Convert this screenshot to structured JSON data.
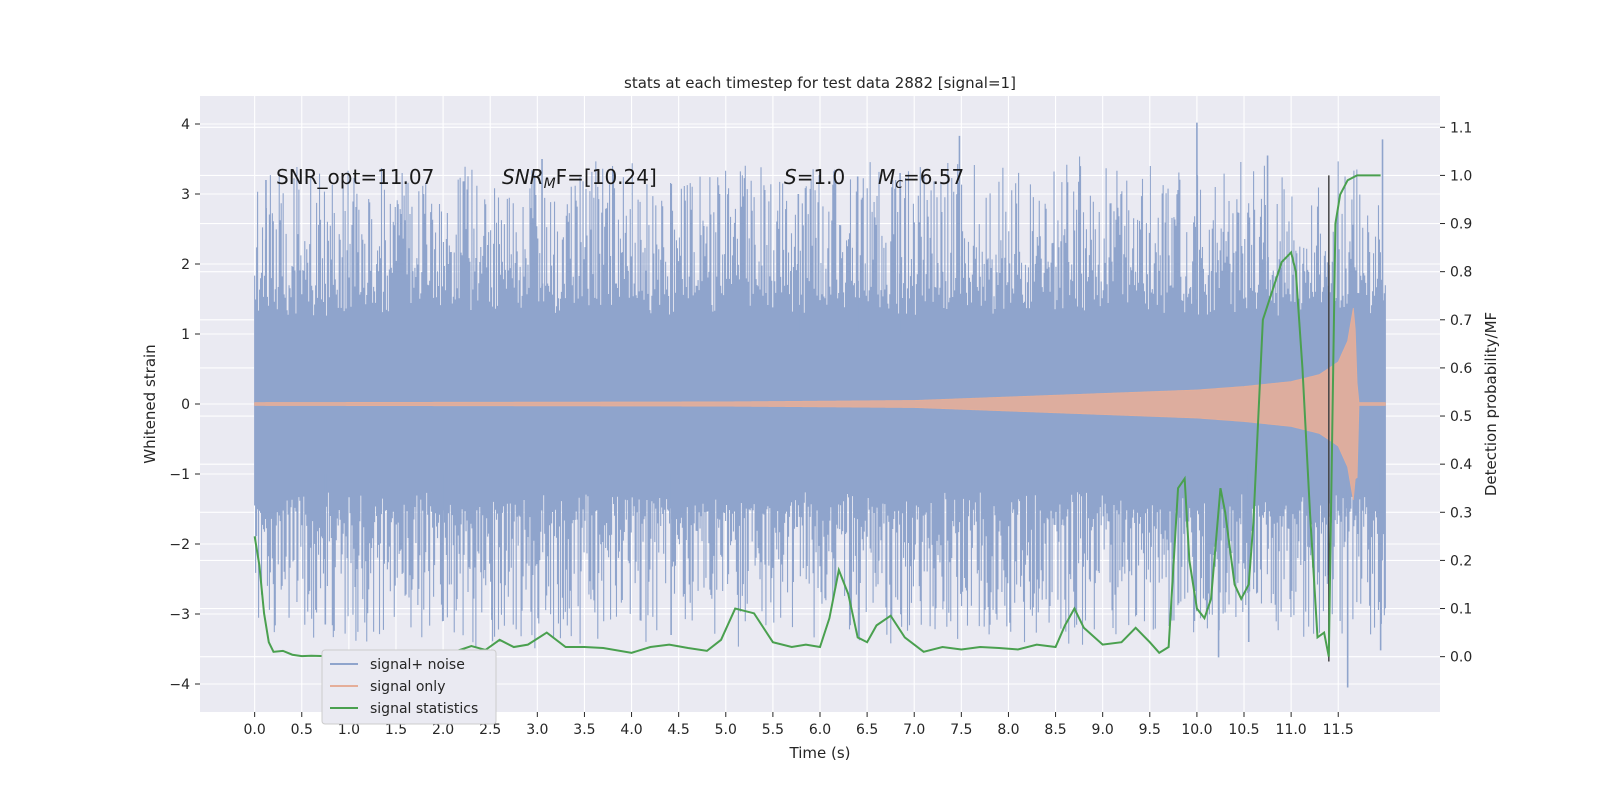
{
  "chart_data": {
    "type": "line",
    "title": "stats at each timestep for test data 2882 [signal=1]",
    "xlabel": "Time (s)",
    "ylabel": "Whitened strain",
    "y2label": "Detection probability/MF",
    "xlim": [
      -0.58,
      12.58
    ],
    "ylim": [
      -4.4,
      4.4
    ],
    "y2lim": [
      -0.115,
      1.165
    ],
    "xticks": [
      0.0,
      0.5,
      1.0,
      1.5,
      2.0,
      2.5,
      3.0,
      3.5,
      4.0,
      4.5,
      5.0,
      5.5,
      6.0,
      6.5,
      7.0,
      7.5,
      8.0,
      8.5,
      9.0,
      9.5,
      10.0,
      10.5,
      11.0,
      11.5
    ],
    "xtick_labels": [
      "0.0",
      "0.5",
      "1.0",
      "1.5",
      "2.0",
      "2.5",
      "3.0",
      "3.5",
      "4.0",
      "4.5",
      "5.0",
      "5.5",
      "6.0",
      "6.5",
      "7.0",
      "7.5",
      "8.0",
      "8.5",
      "9.0",
      "9.5",
      "10.0",
      "10.5",
      "11.0",
      "11.5"
    ],
    "yticks": [
      -4,
      -3,
      -2,
      -1,
      0,
      1,
      2,
      3,
      4
    ],
    "ytick_labels": [
      "−4",
      "−3",
      "−2",
      "−1",
      "0",
      "1",
      "2",
      "3",
      "4"
    ],
    "y2ticks": [
      0.0,
      0.1,
      0.2,
      0.3,
      0.4,
      0.5,
      0.6,
      0.7,
      0.8,
      0.9,
      1.0,
      1.1
    ],
    "y2tick_labels": [
      "0.0",
      "0.1",
      "0.2",
      "0.3",
      "0.4",
      "0.5",
      "0.6",
      "0.7",
      "0.8",
      "0.9",
      "1.0",
      "1.1"
    ],
    "grid": true,
    "legend_position": "lower-left",
    "vline_x": 11.4,
    "vline_y2_range": [
      -0.01,
      1.0
    ],
    "annotations": {
      "snr_opt": "SNR_opt=11.07",
      "snr_mf_main": "SNR",
      "snr_mf_sub": "M",
      "snr_mf_rest": "F=[10.24]",
      "s_main": "S",
      "s_rest": "=1.0",
      "mc_main": "M",
      "mc_sub": "c",
      "mc_rest": "=6.57"
    },
    "series": [
      {
        "name": "signal+ noise",
        "axis": "left",
        "color": "#8fa4cc",
        "kind": "noise-band",
        "t_range": [
          0.0,
          12.0
        ],
        "core_amplitude": 1.25,
        "typical_peak": 2.2,
        "min_value": -4.05,
        "max_value": 4.02,
        "spikes": [
          {
            "x": 7.48,
            "y": 3.83
          },
          {
            "x": 10.0,
            "y": 4.02
          },
          {
            "x": 11.97,
            "y": 3.78
          },
          {
            "x": 3.05,
            "y": 3.5
          },
          {
            "x": 6.4,
            "y": 3.25
          },
          {
            "x": 6.85,
            "y": 3.3
          },
          {
            "x": 0.12,
            "y": 3.2
          },
          {
            "x": 5.77,
            "y": 3.0
          },
          {
            "x": 10.75,
            "y": 3.55
          },
          {
            "x": 11.6,
            "y": -4.05
          },
          {
            "x": 10.23,
            "y": -3.62
          },
          {
            "x": 11.95,
            "y": -3.52
          },
          {
            "x": 10.55,
            "y": -3.4
          },
          {
            "x": 4.42,
            "y": -3.3
          },
          {
            "x": 0.75,
            "y": -3.15
          },
          {
            "x": 2.0,
            "y": -3.1
          }
        ]
      },
      {
        "name": "signal only",
        "axis": "left",
        "color": "#e5ae99",
        "kind": "chirp-envelope",
        "envelope": [
          {
            "x": 0.0,
            "y": 0.02
          },
          {
            "x": 5.0,
            "y": 0.03
          },
          {
            "x": 7.0,
            "y": 0.05
          },
          {
            "x": 8.0,
            "y": 0.1
          },
          {
            "x": 9.0,
            "y": 0.15
          },
          {
            "x": 10.0,
            "y": 0.2
          },
          {
            "x": 10.5,
            "y": 0.25
          },
          {
            "x": 11.0,
            "y": 0.32
          },
          {
            "x": 11.3,
            "y": 0.42
          },
          {
            "x": 11.5,
            "y": 0.6
          },
          {
            "x": 11.6,
            "y": 0.9
          },
          {
            "x": 11.67,
            "y": 1.45
          },
          {
            "x": 11.7,
            "y": 0.3
          },
          {
            "x": 11.72,
            "y": 0.02
          },
          {
            "x": 12.0,
            "y": 0.02
          }
        ],
        "min_value": -1.05
      },
      {
        "name": "signal statistics",
        "axis": "right",
        "color": "#4aa04f",
        "x": [
          0.0,
          0.05,
          0.1,
          0.15,
          0.2,
          0.3,
          0.4,
          0.5,
          0.6,
          0.75,
          1.0,
          1.2,
          1.4,
          1.6,
          1.8,
          2.0,
          2.15,
          2.3,
          2.45,
          2.6,
          2.75,
          2.9,
          3.1,
          3.3,
          3.5,
          3.7,
          4.0,
          4.2,
          4.4,
          4.6,
          4.8,
          4.95,
          5.1,
          5.3,
          5.5,
          5.7,
          5.85,
          6.0,
          6.1,
          6.2,
          6.3,
          6.4,
          6.5,
          6.6,
          6.75,
          6.9,
          7.1,
          7.3,
          7.5,
          7.7,
          7.9,
          8.1,
          8.3,
          8.5,
          8.6,
          8.7,
          8.8,
          9.0,
          9.2,
          9.35,
          9.5,
          9.6,
          9.7,
          9.8,
          9.87,
          9.92,
          10.0,
          10.08,
          10.15,
          10.25,
          10.3,
          10.4,
          10.47,
          10.55,
          10.6,
          10.7,
          10.8,
          10.9,
          11.0,
          11.05,
          11.12,
          11.2,
          11.28,
          11.35,
          11.4,
          11.47,
          11.52,
          11.6,
          11.7,
          11.8,
          11.95
        ],
        "y": [
          0.25,
          0.19,
          0.09,
          0.03,
          0.01,
          0.012,
          0.004,
          0.001,
          0.002,
          0.001,
          0.003,
          0.008,
          0.004,
          0.006,
          0.01,
          0.005,
          0.012,
          0.022,
          0.014,
          0.035,
          0.02,
          0.025,
          0.05,
          0.02,
          0.02,
          0.018,
          0.008,
          0.02,
          0.025,
          0.018,
          0.012,
          0.035,
          0.1,
          0.09,
          0.03,
          0.02,
          0.025,
          0.02,
          0.08,
          0.18,
          0.13,
          0.04,
          0.03,
          0.065,
          0.085,
          0.04,
          0.01,
          0.02,
          0.015,
          0.02,
          0.018,
          0.015,
          0.025,
          0.02,
          0.065,
          0.1,
          0.06,
          0.025,
          0.03,
          0.06,
          0.03,
          0.008,
          0.02,
          0.35,
          0.37,
          0.2,
          0.1,
          0.08,
          0.12,
          0.35,
          0.3,
          0.15,
          0.12,
          0.15,
          0.28,
          0.7,
          0.76,
          0.82,
          0.84,
          0.8,
          0.6,
          0.3,
          0.04,
          0.05,
          0.0,
          0.9,
          0.96,
          0.99,
          1.0,
          1.0,
          1.0
        ]
      }
    ]
  }
}
